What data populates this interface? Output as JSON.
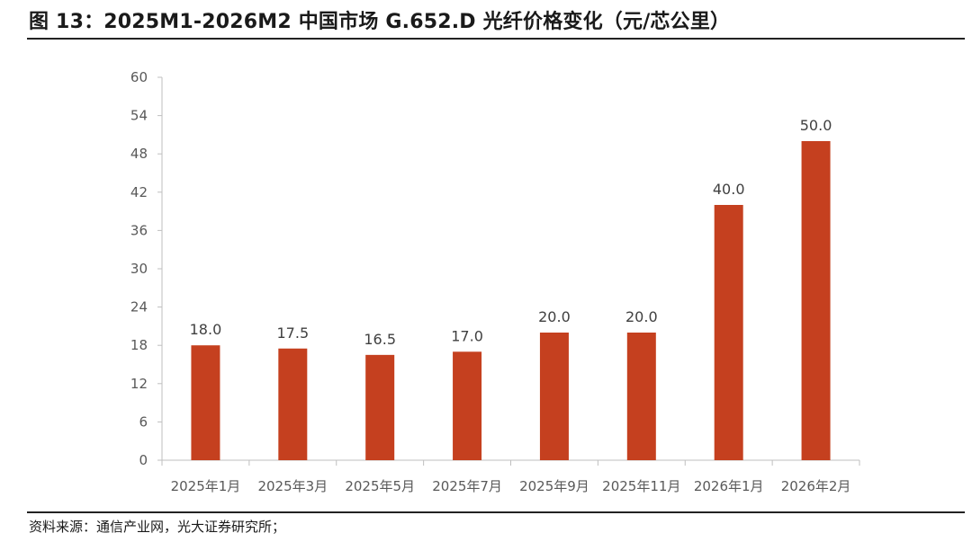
{
  "figure": {
    "title": "图 13：2025M1-2026M2 中国市场 G.652.D 光纤价格变化（元/芯公里）",
    "source": "资料来源：通信产业网，光大证券研究所；"
  },
  "colors": {
    "bar": "#C5401F",
    "axis": "#BFBFBF",
    "text": "#595959"
  },
  "chart_data": {
    "type": "bar",
    "title": "2025M1-2026M2 中国市场 G.652.D 光纤价格变化（元/芯公里）",
    "xlabel": "",
    "ylabel": "",
    "unit": "元/芯公里",
    "categories": [
      "2025年1月",
      "2025年3月",
      "2025年5月",
      "2025年7月",
      "2025年9月",
      "2025年11月",
      "2026年1月",
      "2026年2月"
    ],
    "values": [
      18.0,
      17.5,
      16.5,
      17.0,
      20.0,
      20.0,
      40.0,
      50.0
    ],
    "data_labels": [
      "18.0",
      "17.5",
      "16.5",
      "17.0",
      "20.0",
      "20.0",
      "40.0",
      "50.0"
    ],
    "ylim": [
      0,
      60
    ],
    "yticks": [
      0,
      6,
      12,
      18,
      24,
      30,
      36,
      42,
      48,
      54,
      60
    ],
    "grid": false,
    "legend": "none"
  }
}
